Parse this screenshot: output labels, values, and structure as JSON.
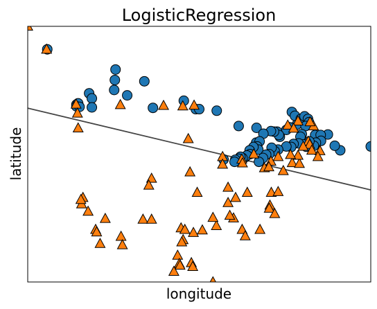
{
  "chart_data": {
    "type": "scatter",
    "title": "LogisticRegression",
    "xlabel": "longitude",
    "ylabel": "latitude",
    "xlim": [
      0,
      100
    ],
    "ylim": [
      0,
      100
    ],
    "grid": false,
    "ticks": false,
    "colors": {
      "class0": "#1f77b4",
      "class1": "#ff7f0e",
      "boundary": "#444444",
      "edge": "#000000"
    },
    "series": [
      {
        "marker": "circle",
        "points": [
          [
            5.7,
            91.0
          ],
          [
            25.6,
            83.1
          ],
          [
            25.4,
            79.0
          ],
          [
            34.0,
            78.5
          ],
          [
            25.2,
            75.1
          ],
          [
            29.0,
            73.0
          ],
          [
            17.9,
            73.8
          ],
          [
            18.7,
            71.8
          ],
          [
            14.2,
            69.4
          ],
          [
            14.7,
            69.9
          ],
          [
            14.2,
            68.7
          ],
          [
            15.1,
            68.5
          ],
          [
            18.7,
            68.3
          ],
          [
            36.5,
            68.1
          ],
          [
            45.5,
            70.9
          ],
          [
            49.0,
            67.6
          ],
          [
            50.0,
            67.6
          ],
          [
            55.1,
            67.0
          ],
          [
            61.5,
            61.0
          ],
          [
            66.7,
            60.3
          ],
          [
            77.0,
            66.5
          ],
          [
            77.9,
            65.0
          ],
          [
            78.4,
            61.5
          ],
          [
            79.6,
            63.8
          ],
          [
            80.7,
            64.8
          ],
          [
            81.7,
            63.8
          ],
          [
            82.0,
            62.5
          ],
          [
            81.0,
            61.0
          ],
          [
            76.3,
            60.5
          ],
          [
            75.4,
            59.5
          ],
          [
            72.7,
            58.8
          ],
          [
            73.5,
            56.8
          ],
          [
            73.2,
            57.5
          ],
          [
            71.8,
            58.8
          ],
          [
            70.9,
            59.0
          ],
          [
            68.7,
            58.0
          ],
          [
            83.8,
            57.5
          ],
          [
            79.9,
            57.8
          ],
          [
            79.5,
            56.8
          ],
          [
            66.6,
            54.5
          ],
          [
            67.6,
            55.0
          ],
          [
            66.9,
            53.0
          ],
          [
            67.2,
            51.8
          ],
          [
            65.8,
            52.8
          ],
          [
            64.7,
            51.5
          ],
          [
            64.8,
            50.0
          ],
          [
            63.4,
            48.8
          ],
          [
            63.9,
            49.5
          ],
          [
            62.6,
            48.5
          ],
          [
            62.0,
            49.0
          ],
          [
            61.5,
            48.2
          ],
          [
            60.5,
            47.8
          ],
          [
            60.3,
            47.0
          ],
          [
            57.1,
            47.9
          ],
          [
            100.0,
            53.0
          ],
          [
            91.1,
            51.5
          ],
          [
            89.5,
            53.3
          ],
          [
            87.5,
            57.7
          ],
          [
            85.4,
            57.5
          ],
          [
            85.5,
            55.2
          ],
          [
            84.0,
            54.5
          ],
          [
            83.4,
            53.3
          ],
          [
            82.1,
            55.0
          ],
          [
            81.2,
            52.9
          ],
          [
            80.4,
            53.8
          ],
          [
            79.0,
            54.2
          ],
          [
            77.5,
            54.0
          ],
          [
            76.8,
            52.8
          ],
          [
            75.4,
            53.0
          ],
          [
            73.0,
            51.8
          ],
          [
            72.0,
            51.2
          ],
          [
            71.1,
            52.5
          ],
          [
            70.4,
            50.0
          ],
          [
            69.5,
            49.8
          ],
          [
            68.6,
            48.5
          ],
          [
            67.4,
            47.0
          ]
        ]
      },
      {
        "marker": "triangle",
        "points": [
          [
            0.0,
            100.0
          ],
          [
            5.5,
            91.0
          ],
          [
            14.1,
            69.5
          ],
          [
            14.5,
            66.0
          ],
          [
            14.7,
            60.2
          ],
          [
            27.0,
            69.3
          ],
          [
            39.6,
            69.0
          ],
          [
            45.2,
            68.8
          ],
          [
            48.5,
            69.1
          ],
          [
            46.8,
            56.0
          ],
          [
            56.8,
            49.0
          ],
          [
            56.8,
            46.0
          ],
          [
            62.4,
            48.0
          ],
          [
            65.9,
            50.0
          ],
          [
            70.9,
            47.2
          ],
          [
            77.1,
            46.6
          ],
          [
            79.2,
            46.3
          ],
          [
            74.5,
            43.5
          ],
          [
            69.0,
            44.6
          ],
          [
            70.3,
            45.0
          ],
          [
            73.0,
            49.0
          ],
          [
            81.8,
            55.0
          ],
          [
            82.2,
            53.8
          ],
          [
            80.3,
            53.0
          ],
          [
            82.8,
            51.5
          ],
          [
            85.2,
            51.3
          ],
          [
            84.6,
            49.0
          ],
          [
            78.8,
            49.5
          ],
          [
            76.6,
            49.8
          ],
          [
            83.3,
            61.0
          ],
          [
            82.3,
            62.6
          ],
          [
            78.8,
            62.9
          ],
          [
            75.8,
            61.3
          ],
          [
            77.5,
            60.1
          ],
          [
            62.6,
            46.5
          ],
          [
            47.3,
            43.0
          ],
          [
            36.1,
            40.5
          ],
          [
            35.3,
            37.8
          ],
          [
            49.4,
            35.0
          ],
          [
            58.4,
            37.0
          ],
          [
            60.6,
            33.0
          ],
          [
            64.0,
            35.0
          ],
          [
            71.0,
            35.0
          ],
          [
            73.0,
            35.3
          ],
          [
            70.6,
            30.0
          ],
          [
            70.4,
            28.8
          ],
          [
            72.0,
            26.7
          ],
          [
            60.0,
            25.0
          ],
          [
            62.5,
            20.5
          ],
          [
            55.0,
            22.0
          ],
          [
            44.7,
            21.1
          ],
          [
            45.3,
            16.5
          ],
          [
            44.9,
            15.6
          ],
          [
            50.9,
            20.3
          ],
          [
            48.3,
            19.3
          ],
          [
            43.7,
            10.4
          ],
          [
            44.2,
            7.2
          ],
          [
            47.7,
            7.5
          ],
          [
            44.4,
            6.5
          ],
          [
            42.6,
            4.1
          ],
          [
            15.7,
            30.5
          ],
          [
            16.1,
            33.0
          ],
          [
            15.5,
            32.2
          ],
          [
            17.6,
            27.6
          ],
          [
            22.6,
            24.8
          ],
          [
            19.8,
            20.5
          ],
          [
            20.1,
            19.5
          ],
          [
            21.1,
            15.0
          ],
          [
            27.2,
            17.8
          ],
          [
            27.6,
            14.5
          ],
          [
            33.6,
            24.5
          ],
          [
            36.1,
            24.5
          ],
          [
            45.8,
            20.5
          ],
          [
            48.1,
            6.0
          ],
          [
            54.0,
            0.0
          ],
          [
            63.4,
            18.0
          ],
          [
            67.7,
            20.5
          ],
          [
            58.9,
            26.0
          ],
          [
            58.4,
            31.0
          ],
          [
            54.0,
            25.2
          ]
        ]
      }
    ],
    "decision_boundary": [
      [
        0,
        68.0
      ],
      [
        100,
        36.0
      ]
    ]
  }
}
